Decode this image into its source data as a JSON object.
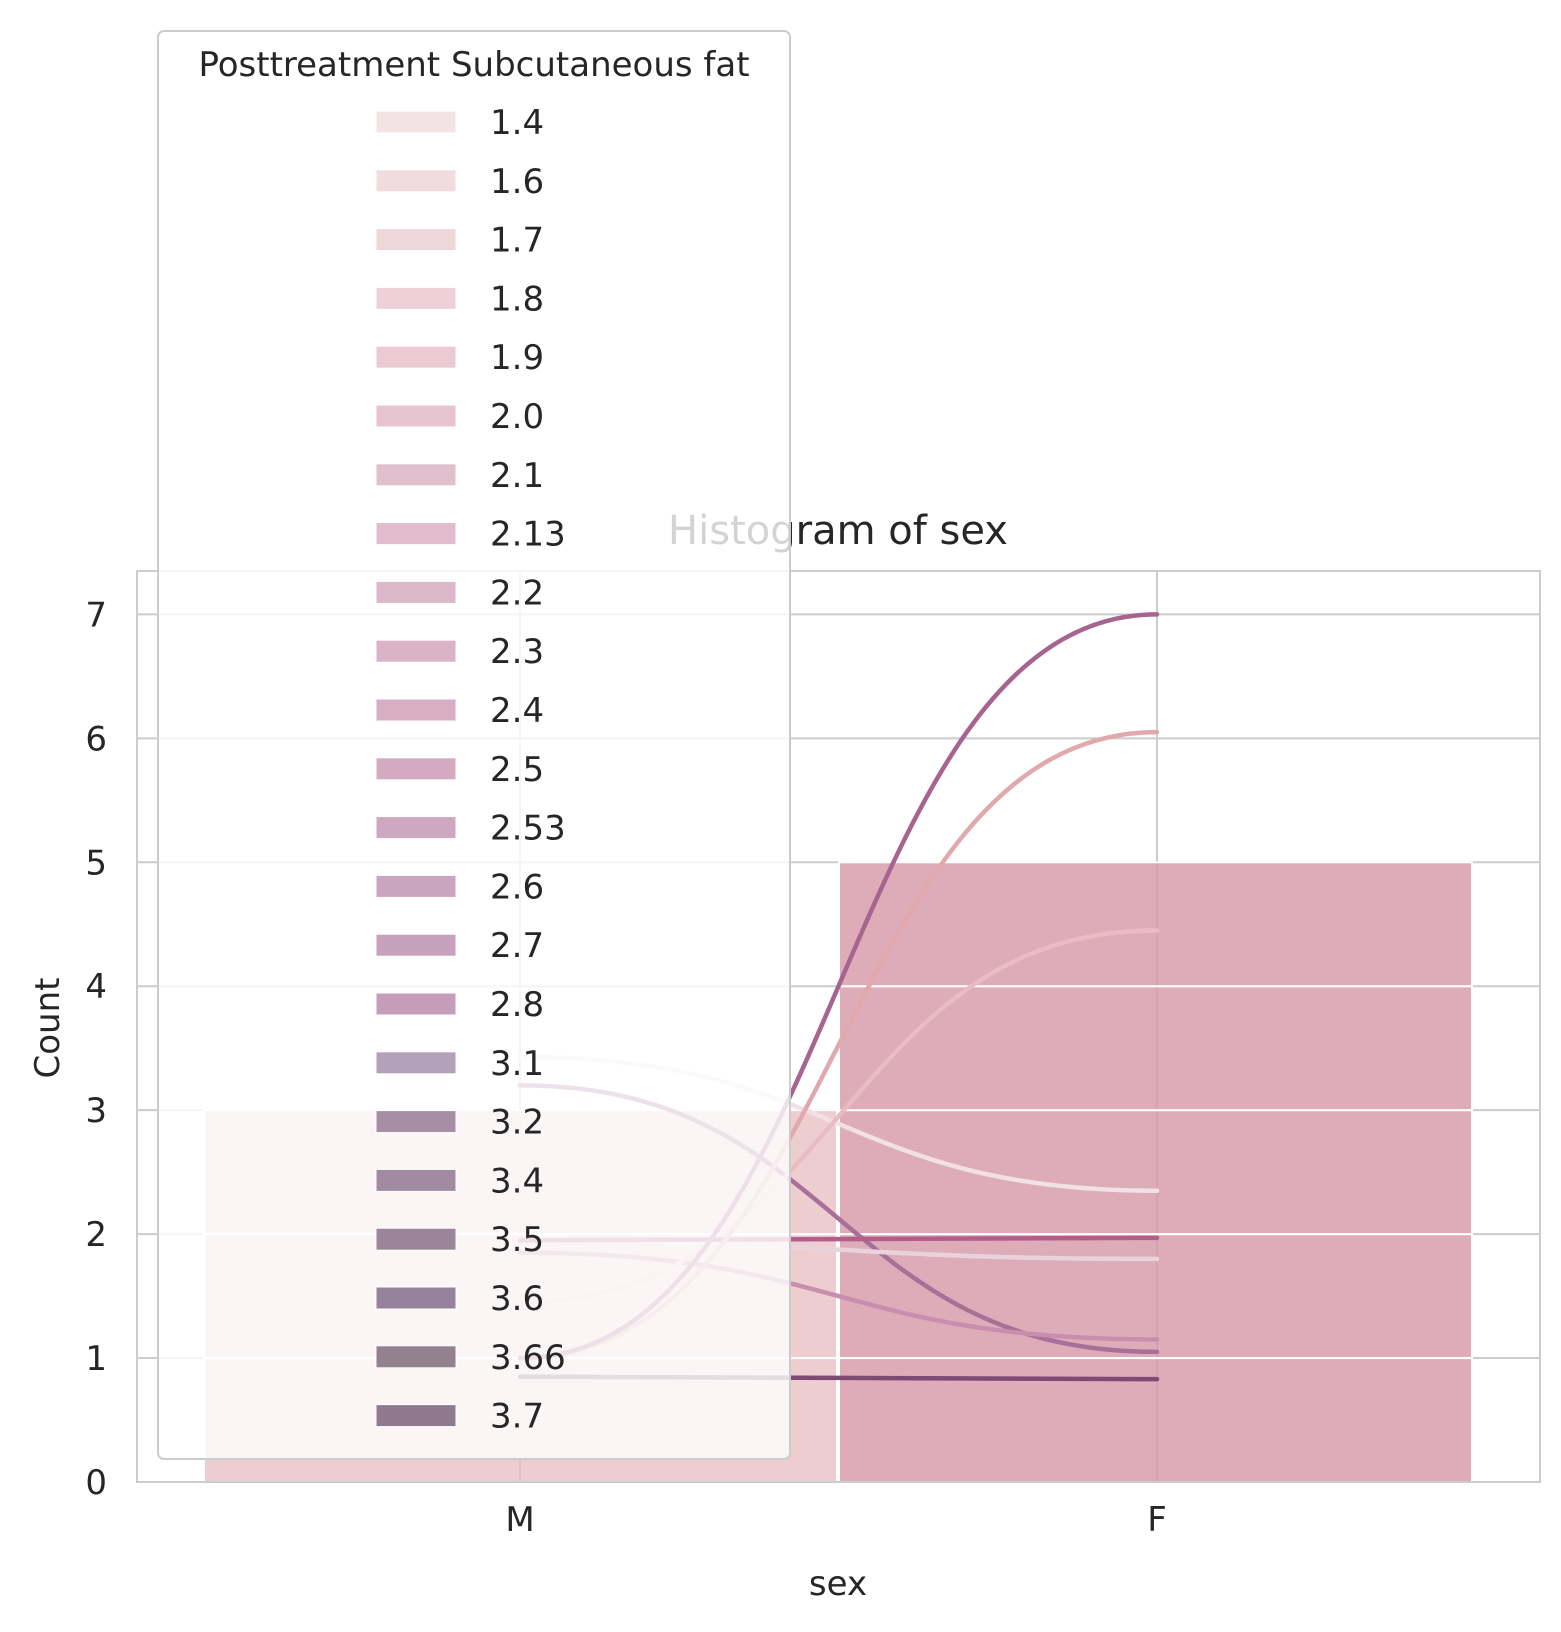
{
  "chart_data": {
    "type": "bar",
    "title": "Histogram of sex",
    "xlabel": "sex",
    "ylabel": "Count",
    "categories": [
      "M",
      "F"
    ],
    "ylim": [
      0,
      7.35
    ],
    "yticks": [
      0,
      1,
      2,
      3,
      4,
      5,
      6,
      7
    ],
    "grid": true,
    "stacked_bars": [
      {
        "category": "M",
        "segments": [
          {
            "name": "1.4",
            "value": 1
          },
          {
            "name": "1.6",
            "value": 1
          },
          {
            "name": "1.7",
            "value": 1
          }
        ]
      },
      {
        "category": "F",
        "segments": [
          {
            "name": "2.0",
            "value": 1
          },
          {
            "name": "2.4",
            "value": 1
          },
          {
            "name": "2.6",
            "value": 1
          },
          {
            "name": "2.7",
            "value": 1
          },
          {
            "name": "3.1",
            "value": 1
          }
        ]
      }
    ],
    "kde_series": [
      {
        "name": "1.4",
        "values": [
          3.43,
          2.35
        ],
        "color": "#f1e1e6"
      },
      {
        "name": "2.1",
        "values": [
          3.2,
          1.05
        ],
        "color": "#a86f98"
      },
      {
        "name": "1.8",
        "values": [
          1.95,
          1.8
        ],
        "color": "#e8d3dc"
      },
      {
        "name": "2.2",
        "values": [
          1.85,
          1.15
        ],
        "color": "#c98ead"
      },
      {
        "name": "1.6",
        "values": [
          1.45,
          4.45
        ],
        "color": "#e9bcc3"
      },
      {
        "name": "2.5",
        "values": [
          0.85,
          0.83
        ],
        "color": "#7c4a72"
      },
      {
        "name": "2.0",
        "values": [
          1.95,
          1.97
        ],
        "color": "#b35e8a"
      },
      {
        "name": "2.8",
        "values": [
          1.0,
          6.05
        ],
        "color": "#e1a9ad"
      },
      {
        "name": "2.13",
        "values": [
          1.0,
          7.0
        ],
        "color": "#a6648f"
      }
    ],
    "legend": {
      "title": "Posttreatment Subcutaneous fat",
      "position": "upper-left",
      "entries": [
        "1.4",
        "1.6",
        "1.7",
        "1.8",
        "1.9",
        "2.0",
        "2.1",
        "2.13",
        "2.2",
        "2.3",
        "2.4",
        "2.5",
        "2.53",
        "2.6",
        "2.7",
        "2.8",
        "3.1",
        "3.2",
        "3.4",
        "3.5",
        "3.6",
        "3.66",
        "3.7"
      ],
      "colors": [
        "#f4e3e4",
        "#f1dbdf",
        "#efd6db",
        "#edd0d8",
        "#ebcad4",
        "#e7c4d0",
        "#e2bfcc",
        "#e2bccc",
        "#ddb8c8",
        "#dab3c6",
        "#d7aec4",
        "#d3aac2",
        "#d0a7c0",
        "#cba4bf",
        "#c7a0bd",
        "#c59dbb",
        "#b3a0b9",
        "#a78ea6",
        "#a28aa2",
        "#9b8599",
        "#96829a",
        "#93818f",
        "#8f7a8d"
      ]
    }
  }
}
